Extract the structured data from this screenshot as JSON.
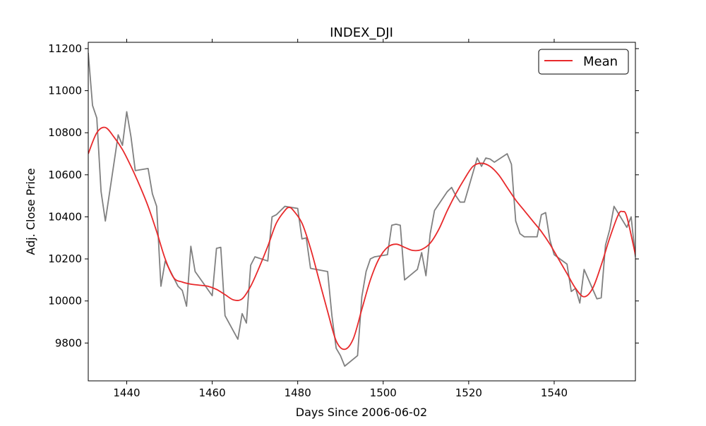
{
  "chart_data": {
    "type": "line",
    "title": "INDEX_DJI",
    "xlabel": "Days Since 2006-06-02",
    "ylabel": "Adj. Close Price",
    "xlim": [
      1431,
      1559
    ],
    "ylim": [
      9620,
      11230
    ],
    "x_ticks": [
      1440,
      1460,
      1480,
      1500,
      1520,
      1540
    ],
    "y_ticks": [
      9800,
      10000,
      10200,
      10400,
      10600,
      10800,
      11000,
      11200
    ],
    "grid": false,
    "legend": {
      "placement": "top-right",
      "entries": [
        "Mean"
      ]
    },
    "series": [
      {
        "name": "",
        "color": "#808080",
        "x": [
          1431,
          1432,
          1433,
          1434,
          1435,
          1438,
          1439,
          1440,
          1441,
          1442,
          1445,
          1446,
          1447,
          1448,
          1449,
          1452,
          1453,
          1454,
          1455,
          1456,
          1460,
          1461,
          1462,
          1463,
          1466,
          1467,
          1468,
          1469,
          1470,
          1473,
          1474,
          1475,
          1476,
          1477,
          1480,
          1481,
          1482,
          1483,
          1487,
          1488,
          1489,
          1490,
          1491,
          1494,
          1495,
          1496,
          1497,
          1498,
          1501,
          1502,
          1503,
          1504,
          1505,
          1508,
          1509,
          1510,
          1511,
          1512,
          1515,
          1516,
          1517,
          1518,
          1519,
          1522,
          1523,
          1524,
          1525,
          1526,
          1529,
          1530,
          1531,
          1532,
          1533,
          1536,
          1537,
          1538,
          1539,
          1540,
          1543,
          1544,
          1545,
          1546,
          1547,
          1550,
          1551,
          1552,
          1553,
          1554,
          1557,
          1558,
          1559
        ],
        "values": [
          11180,
          10930,
          10870,
          10520,
          10380,
          10790,
          10740,
          10900,
          10780,
          10620,
          10630,
          10510,
          10450,
          10070,
          10190,
          10070,
          10050,
          9975,
          10260,
          10140,
          10025,
          10250,
          10255,
          9930,
          9818,
          9940,
          9895,
          10170,
          10210,
          10190,
          10400,
          10410,
          10430,
          10450,
          10440,
          10295,
          10300,
          10155,
          10140,
          9930,
          9775,
          9740,
          9690,
          9740,
          10020,
          10140,
          10200,
          10210,
          10220,
          10360,
          10365,
          10360,
          10100,
          10150,
          10230,
          10120,
          10320,
          10430,
          10520,
          10540,
          10500,
          10470,
          10470,
          10680,
          10640,
          10680,
          10675,
          10660,
          10700,
          10650,
          10380,
          10320,
          10305,
          10305,
          10410,
          10420,
          10290,
          10220,
          10175,
          10045,
          10060,
          9990,
          10150,
          10010,
          10015,
          10265,
          10340,
          10450,
          10350,
          10400,
          10210
        ]
      },
      {
        "name": "Mean",
        "color": "#e8292b",
        "x": [
          1431,
          1433,
          1435,
          1437,
          1439,
          1441,
          1443,
          1445,
          1447,
          1449,
          1451,
          1453,
          1455,
          1457,
          1459,
          1461,
          1463,
          1465,
          1467,
          1469,
          1471,
          1473,
          1475,
          1477,
          1478,
          1479,
          1481,
          1483,
          1485,
          1487,
          1489,
          1491,
          1493,
          1495,
          1497,
          1499,
          1501,
          1503,
          1505,
          1507,
          1509,
          1511,
          1513,
          1515,
          1517,
          1519,
          1521,
          1523,
          1525,
          1527,
          1529,
          1531,
          1533,
          1535,
          1537,
          1539,
          1541,
          1543,
          1545,
          1547,
          1549,
          1551,
          1553,
          1555,
          1556,
          1557,
          1559
        ],
        "values": [
          10700,
          10800,
          10825,
          10780,
          10720,
          10640,
          10550,
          10450,
          10330,
          10200,
          10110,
          10090,
          10080,
          10075,
          10070,
          10055,
          10030,
          10005,
          10010,
          10070,
          10160,
          10260,
          10370,
          10430,
          10445,
          10430,
          10370,
          10250,
          10100,
          9950,
          9810,
          9770,
          9820,
          9960,
          10100,
          10200,
          10255,
          10270,
          10255,
          10240,
          10245,
          10275,
          10340,
          10430,
          10510,
          10580,
          10640,
          10655,
          10640,
          10600,
          10540,
          10480,
          10430,
          10380,
          10330,
          10270,
          10200,
          10130,
          10060,
          10020,
          10060,
          10170,
          10300,
          10410,
          10425,
          10400,
          10220
        ]
      }
    ]
  }
}
